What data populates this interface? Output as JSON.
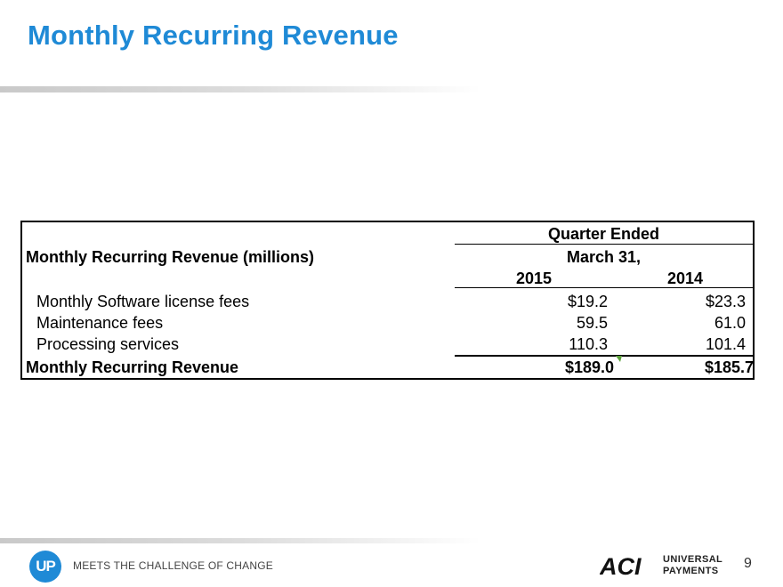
{
  "slide": {
    "title": "Monthly Recurring Revenue",
    "page_number": "9"
  },
  "table": {
    "header": {
      "quarter_ended": "Quarter Ended",
      "row_label": "Monthly Recurring Revenue (millions)",
      "period": "March 31,",
      "year_1": "2015",
      "year_2": "2014"
    },
    "rows": [
      {
        "label": "Monthly Software license fees",
        "v2015": "$19.2",
        "v2014": "$23.3"
      },
      {
        "label": "Maintenance fees",
        "v2015": "59.5",
        "v2014": "61.0"
      },
      {
        "label": "Processing services",
        "v2015": "110.3",
        "v2014": "101.4"
      }
    ],
    "total": {
      "label": "Monthly Recurring Revenue",
      "v2015": "$189.0",
      "v2014": "$185.7"
    }
  },
  "footer": {
    "logo_text": "UP",
    "tagline": "MEETS THE CHALLENGE OF CHANGE",
    "brand": "ACI",
    "brand_line1": "UNIVERSAL",
    "brand_line2": "PAYMENTS"
  },
  "colors": {
    "title_blue": "#1f8ad6",
    "marker_green": "#5aa03a"
  }
}
